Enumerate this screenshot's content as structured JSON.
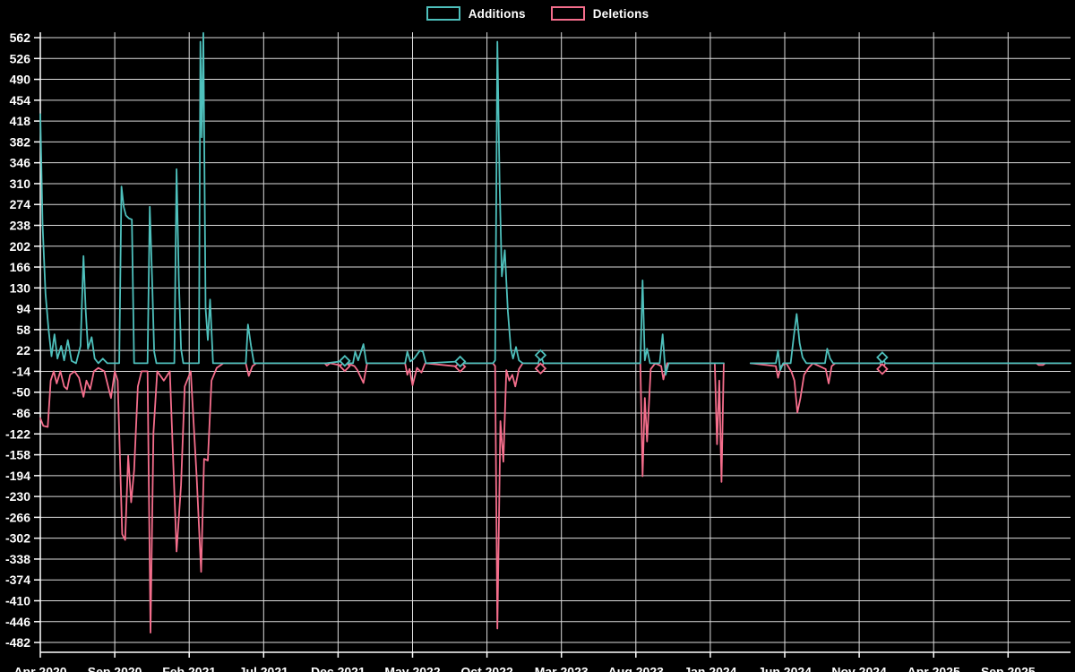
{
  "chart_data": {
    "type": "line",
    "title": "",
    "background_color": "#000000",
    "text_color": "#ffffff",
    "grid_color": "#dcdcdc",
    "axis_color": "#ffffff",
    "grid": true,
    "legend": {
      "position": "top-center",
      "items": [
        {
          "label": "Additions",
          "color": "#4ec0bc"
        },
        {
          "label": "Deletions",
          "color": "#f56e8c"
        }
      ]
    },
    "x_axis": {
      "tick_labels": [
        "Apr 2020",
        "Sep 2020",
        "Feb 2021",
        "Jul 2021",
        "Dec 2021",
        "May 2022",
        "Oct 2022",
        "Mar 2023",
        "Aug 2023",
        "Jan 2024",
        "Jun 2024",
        "Nov 2024",
        "Apr 2025",
        "Sep 2025"
      ],
      "tick_interval_months": 5,
      "series_x_unit": "months since Apr 2020"
    },
    "y_axis": {
      "min": -482,
      "max": 562,
      "step": 36,
      "ticks": [
        562,
        526,
        490,
        454,
        418,
        382,
        346,
        310,
        274,
        238,
        202,
        166,
        130,
        94,
        58,
        22,
        -14,
        -50,
        -86,
        -122,
        -158,
        -194,
        -230,
        -266,
        -302,
        -338,
        -374,
        -410,
        -446,
        -482
      ]
    },
    "series": [
      {
        "name": "Additions",
        "color": "#4ec0bc",
        "segments": [
          [
            [
              0,
              430
            ],
            [
              0.15,
              240
            ],
            [
              0.35,
              120
            ],
            [
              0.55,
              60
            ],
            [
              0.75,
              12
            ],
            [
              0.95,
              50
            ],
            [
              1.15,
              8
            ],
            [
              1.4,
              30
            ],
            [
              1.6,
              5
            ],
            [
              1.85,
              40
            ],
            [
              2.1,
              4
            ],
            [
              2.4,
              0
            ],
            [
              2.7,
              30
            ],
            [
              2.9,
              185
            ],
            [
              3.05,
              90
            ],
            [
              3.2,
              25
            ],
            [
              3.45,
              45
            ],
            [
              3.65,
              8
            ],
            [
              3.9,
              0
            ],
            [
              4.2,
              8
            ],
            [
              4.5,
              0
            ],
            [
              5.3,
              0
            ],
            [
              5.45,
              305
            ],
            [
              5.6,
              270
            ],
            [
              5.75,
              255
            ],
            [
              5.95,
              250
            ],
            [
              6.15,
              248
            ],
            [
              6.3,
              0
            ],
            [
              7.2,
              0
            ],
            [
              7.35,
              270
            ],
            [
              7.5,
              150
            ],
            [
              7.65,
              20
            ],
            [
              7.8,
              0
            ],
            [
              9.0,
              0
            ],
            [
              9.15,
              335
            ],
            [
              9.3,
              145
            ],
            [
              9.45,
              25
            ],
            [
              9.6,
              0
            ],
            [
              10.65,
              0
            ],
            [
              10.75,
              555
            ],
            [
              10.85,
              390
            ],
            [
              10.95,
              570
            ],
            [
              11.1,
              95
            ],
            [
              11.25,
              40
            ],
            [
              11.4,
              110
            ],
            [
              11.6,
              0
            ],
            [
              13.8,
              0
            ],
            [
              13.95,
              67
            ],
            [
              14.15,
              30
            ],
            [
              14.35,
              0
            ],
            [
              19.2,
              0
            ],
            [
              20.45,
              4
            ],
            [
              20.6,
              0
            ],
            [
              21.0,
              0
            ],
            [
              21.15,
              20
            ],
            [
              21.35,
              5
            ],
            [
              21.7,
              33
            ],
            [
              21.9,
              0
            ],
            [
              24.5,
              0
            ],
            [
              24.65,
              20
            ],
            [
              24.85,
              3
            ],
            [
              25.1,
              8
            ],
            [
              25.5,
              22
            ],
            [
              25.7,
              20
            ],
            [
              25.9,
              0
            ],
            [
              28.2,
              3
            ],
            [
              28.4,
              0
            ],
            [
              30.4,
              0
            ],
            [
              30.55,
              5
            ],
            [
              30.7,
              555
            ],
            [
              30.85,
              310
            ],
            [
              31.0,
              150
            ],
            [
              31.2,
              195
            ],
            [
              31.4,
              90
            ],
            [
              31.6,
              25
            ],
            [
              31.75,
              8
            ],
            [
              31.95,
              28
            ],
            [
              32.15,
              5
            ],
            [
              32.4,
              0
            ],
            [
              33.45,
              0
            ],
            [
              33.6,
              14
            ],
            [
              33.8,
              0
            ],
            [
              40.3,
              0
            ],
            [
              40.45,
              143
            ],
            [
              40.6,
              5
            ],
            [
              40.75,
              25
            ],
            [
              40.95,
              0
            ],
            [
              41.6,
              0
            ],
            [
              41.8,
              50
            ],
            [
              42.0,
              -20
            ],
            [
              42.2,
              0
            ],
            [
              45.9,
              0
            ]
          ],
          [
            [
              47.7,
              0
            ],
            [
              49.4,
              0
            ],
            [
              49.55,
              22
            ],
            [
              49.7,
              -12
            ],
            [
              49.9,
              0
            ],
            [
              50.4,
              0
            ],
            [
              50.6,
              45
            ],
            [
              50.8,
              85
            ],
            [
              51.0,
              35
            ],
            [
              51.2,
              10
            ],
            [
              51.45,
              0
            ],
            [
              52.7,
              0
            ],
            [
              52.85,
              25
            ],
            [
              53.05,
              8
            ],
            [
              53.25,
              0
            ],
            [
              56.4,
              0
            ],
            [
              56.55,
              10
            ],
            [
              56.75,
              0
            ],
            [
              69.2,
              0
            ]
          ]
        ],
        "markers": [
          [
            20.45,
            4
          ],
          [
            28.2,
            3
          ],
          [
            33.6,
            14
          ],
          [
            56.55,
            10
          ]
        ]
      },
      {
        "name": "Deletions",
        "color": "#f56e8c",
        "segments": [
          [
            [
              0,
              -95
            ],
            [
              0.2,
              -108
            ],
            [
              0.5,
              -110
            ],
            [
              0.7,
              -30
            ],
            [
              0.9,
              -14
            ],
            [
              1.1,
              -35
            ],
            [
              1.35,
              -14
            ],
            [
              1.6,
              -40
            ],
            [
              1.8,
              -45
            ],
            [
              2.0,
              -20
            ],
            [
              2.3,
              -14
            ],
            [
              2.6,
              -25
            ],
            [
              2.9,
              -58
            ],
            [
              3.1,
              -30
            ],
            [
              3.35,
              -45
            ],
            [
              3.6,
              -14
            ],
            [
              3.9,
              -8
            ],
            [
              4.3,
              -14
            ],
            [
              4.75,
              -60
            ],
            [
              5.0,
              -14
            ],
            [
              5.2,
              -30
            ],
            [
              5.5,
              -295
            ],
            [
              5.7,
              -305
            ],
            [
              5.9,
              -160
            ],
            [
              6.1,
              -240
            ],
            [
              6.3,
              -185
            ],
            [
              6.55,
              -40
            ],
            [
              6.8,
              -14
            ],
            [
              7.2,
              -14
            ],
            [
              7.4,
              -465
            ],
            [
              7.6,
              -120
            ],
            [
              7.85,
              -14
            ],
            [
              8.3,
              -30
            ],
            [
              8.7,
              -14
            ],
            [
              9.15,
              -325
            ],
            [
              9.45,
              -210
            ],
            [
              9.7,
              -40
            ],
            [
              10.1,
              -14
            ],
            [
              10.5,
              -195
            ],
            [
              10.8,
              -360
            ],
            [
              11.0,
              -165
            ],
            [
              11.25,
              -168
            ],
            [
              11.5,
              -30
            ],
            [
              11.85,
              -8
            ],
            [
              12.3,
              0
            ],
            [
              13.8,
              0
            ],
            [
              14.0,
              -22
            ],
            [
              14.25,
              -5
            ],
            [
              14.5,
              0
            ],
            [
              19.1,
              0
            ],
            [
              19.25,
              -4
            ],
            [
              19.45,
              0
            ],
            [
              20.45,
              -5
            ],
            [
              20.6,
              0
            ],
            [
              21.1,
              -5
            ],
            [
              21.3,
              -12
            ],
            [
              21.7,
              -34
            ],
            [
              21.95,
              0
            ],
            [
              24.5,
              0
            ],
            [
              24.65,
              -20
            ],
            [
              24.8,
              -10
            ],
            [
              25.0,
              -38
            ],
            [
              25.3,
              -8
            ],
            [
              25.6,
              -16
            ],
            [
              25.85,
              0
            ],
            [
              28.2,
              -6
            ],
            [
              28.4,
              0
            ],
            [
              30.4,
              0
            ],
            [
              30.55,
              -5
            ],
            [
              30.7,
              -458
            ],
            [
              30.9,
              -100
            ],
            [
              31.1,
              -170
            ],
            [
              31.3,
              -12
            ],
            [
              31.5,
              -30
            ],
            [
              31.7,
              -20
            ],
            [
              31.9,
              -40
            ],
            [
              32.15,
              -10
            ],
            [
              32.4,
              0
            ],
            [
              33.45,
              0
            ],
            [
              33.6,
              -9
            ],
            [
              33.8,
              0
            ],
            [
              40.3,
              0
            ],
            [
              40.45,
              -195
            ],
            [
              40.6,
              -60
            ],
            [
              40.75,
              -135
            ],
            [
              41.0,
              -10
            ],
            [
              41.3,
              0
            ],
            [
              41.7,
              -5
            ],
            [
              41.85,
              -28
            ],
            [
              42.1,
              0
            ],
            [
              45.3,
              0
            ],
            [
              45.45,
              -140
            ],
            [
              45.6,
              -30
            ],
            [
              45.75,
              -205
            ],
            [
              45.9,
              0
            ]
          ],
          [
            [
              47.7,
              0
            ],
            [
              49.4,
              -5
            ],
            [
              49.55,
              -25
            ],
            [
              49.75,
              -5
            ],
            [
              50.1,
              0
            ],
            [
              50.45,
              -15
            ],
            [
              50.65,
              -30
            ],
            [
              50.85,
              -85
            ],
            [
              51.05,
              -60
            ],
            [
              51.3,
              -20
            ],
            [
              51.6,
              -8
            ],
            [
              51.9,
              0
            ],
            [
              52.75,
              -10
            ],
            [
              52.95,
              -35
            ],
            [
              53.15,
              -5
            ],
            [
              53.4,
              0
            ],
            [
              56.4,
              0
            ],
            [
              56.55,
              -10
            ],
            [
              56.75,
              0
            ],
            [
              66.9,
              0
            ],
            [
              67.05,
              -3
            ],
            [
              67.35,
              -3
            ],
            [
              67.5,
              0
            ],
            [
              69.2,
              0
            ]
          ]
        ],
        "markers": [
          [
            20.45,
            -5
          ],
          [
            28.2,
            -6
          ],
          [
            33.6,
            -9
          ],
          [
            56.55,
            -10
          ]
        ]
      }
    ]
  }
}
